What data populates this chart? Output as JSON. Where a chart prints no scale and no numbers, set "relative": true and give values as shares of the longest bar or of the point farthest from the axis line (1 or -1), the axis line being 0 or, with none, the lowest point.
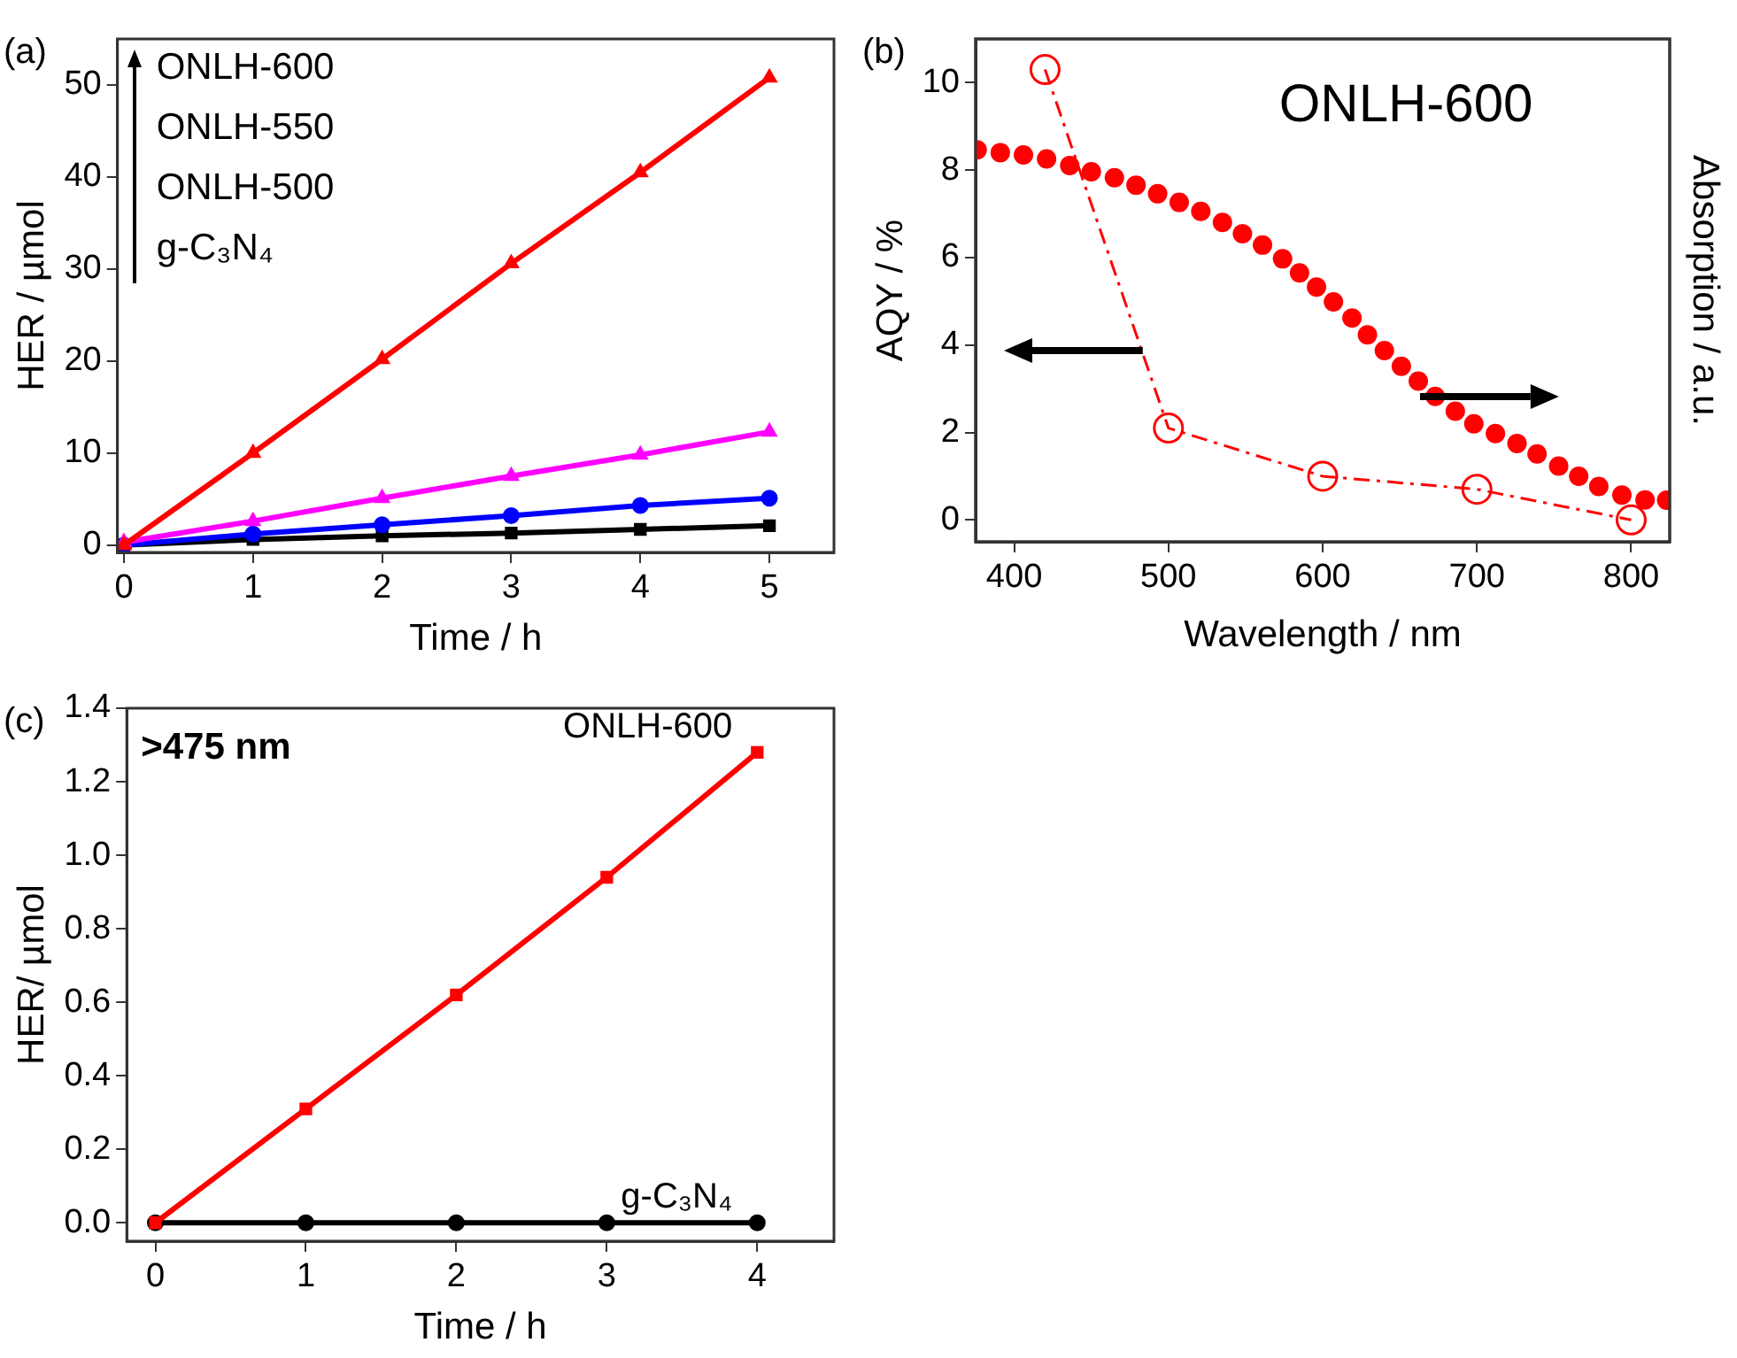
{
  "chart_data": [
    {
      "type": "line",
      "xlabel": "Time / h",
      "ylabel": "HER / µmol",
      "x": [
        0,
        1,
        2,
        3,
        4,
        5
      ],
      "xlim": [
        -0.05,
        5.5
      ],
      "xticks": [
        0,
        1,
        2,
        3,
        4,
        5
      ],
      "ylim": [
        -0.8,
        55
      ],
      "yticks": [
        0,
        10,
        20,
        30,
        40,
        50
      ],
      "annotations": [
        "(a)",
        "ONLH-600",
        "ONLH-550",
        "ONLH-500",
        "g-C₃N₄"
      ],
      "series": [
        {
          "color": "#ff0000",
          "marker": "triangle",
          "values": [
            0,
            10,
            20.2,
            30.6,
            40.5,
            50.8
          ]
        },
        {
          "color": "#ff00ff",
          "marker": "triangle",
          "values": [
            0.3,
            2.6,
            5.1,
            7.5,
            9.8,
            12.3
          ]
        },
        {
          "color": "#0000ff",
          "marker": "circle",
          "values": [
            0,
            1.2,
            2.2,
            3.2,
            4.3,
            5.1
          ]
        },
        {
          "color": "#000000",
          "marker": "square",
          "values": [
            0,
            0.6,
            1.0,
            1.3,
            1.7,
            2.1
          ]
        }
      ]
    },
    {
      "type": "line",
      "xlabel": "Wavelength / nm",
      "ylabel": "AQY / %",
      "xlim": [
        375,
        825
      ],
      "xticks": [
        400,
        500,
        600,
        700,
        800
      ],
      "ylim": [
        -0.5,
        11
      ],
      "yticks": [
        0,
        2,
        4,
        6,
        8,
        10
      ],
      "annotations": [
        "(b)",
        "ONLH-600"
      ],
      "series": [
        {
          "color": "#ff0000",
          "marker": "circle",
          "line_style": "dashed",
          "x": [
            420,
            500,
            600,
            700,
            800
          ],
          "values": [
            10.3,
            2.1,
            1.0,
            0.7,
            0.0
          ]
        }
      ]
    },
    {
      "type": "scatter",
      "relative": true,
      "ylabel": "Absorption / a.u.",
      "xlim": [
        375,
        825
      ],
      "series": [
        {
          "color": "#ff0000",
          "marker": "circle",
          "x": [
            376,
            391,
            406,
            421,
            436,
            450,
            465,
            479,
            493,
            507,
            521,
            535,
            548,
            561,
            574,
            585,
            596,
            607,
            619,
            629,
            640,
            651,
            662,
            673,
            686,
            698,
            712,
            726,
            739,
            753,
            766,
            779,
            794,
            809,
            823
          ],
          "values": [
            1.0,
            0.993,
            0.987,
            0.977,
            0.96,
            0.944,
            0.929,
            0.91,
            0.888,
            0.866,
            0.843,
            0.815,
            0.786,
            0.757,
            0.722,
            0.686,
            0.65,
            0.612,
            0.571,
            0.528,
            0.488,
            0.448,
            0.41,
            0.371,
            0.333,
            0.301,
            0.276,
            0.251,
            0.224,
            0.193,
            0.167,
            0.141,
            0.119,
            0.107,
            0.106
          ]
        }
      ]
    },
    {
      "type": "line",
      "xlabel": "Time / h",
      "ylabel": "HER/ µmol",
      "x": [
        0,
        1,
        2,
        3,
        4
      ],
      "xlim": [
        -0.19,
        4.51
      ],
      "xticks": [
        0,
        1,
        2,
        3,
        4
      ],
      "ylim": [
        -0.05,
        1.4
      ],
      "yticks": [
        {
          "value": 0,
          "label": "0.0"
        },
        {
          "value": 0.2,
          "label": "0.2"
        },
        {
          "value": 0.4,
          "label": "0.4"
        },
        {
          "value": 0.6,
          "label": "0.6"
        },
        {
          "value": 0.8,
          "label": "0.8"
        },
        {
          "value": 1.0,
          "label": "1.0"
        },
        {
          "value": 1.2,
          "label": "1.2"
        },
        {
          "value": 1.4,
          "label": "1.4"
        }
      ],
      "annotations": [
        "(c)",
        ">475 nm"
      ],
      "series": [
        {
          "name": "ONLH-600",
          "color": "#ff0000",
          "marker": "square",
          "values": [
            0,
            0.31,
            0.62,
            0.94,
            1.28
          ]
        },
        {
          "name": "g-C₃N₄",
          "color": "#000000",
          "marker": "circle",
          "values": [
            0,
            0,
            0,
            0,
            0
          ]
        }
      ]
    }
  ]
}
